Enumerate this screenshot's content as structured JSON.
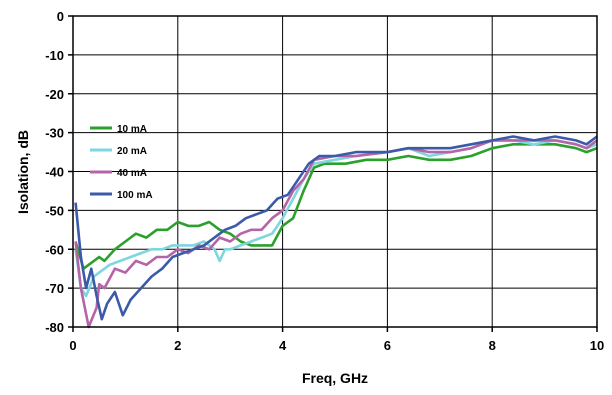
{
  "chart_data": {
    "type": "line",
    "xlabel": "Freq, GHz",
    "ylabel": "Isolation, dB",
    "xlim": [
      0,
      10
    ],
    "ylim": [
      -80,
      0
    ],
    "xticks": [
      0,
      2,
      4,
      6,
      8,
      10
    ],
    "yticks": [
      0,
      -10,
      -20,
      -30,
      -40,
      -50,
      -60,
      -70,
      -80
    ],
    "grid": true,
    "legend_position": "left",
    "series": [
      {
        "name": "10 mA",
        "color": "#2ca02c",
        "points": [
          [
            0.05,
            -58
          ],
          [
            0.2,
            -65
          ],
          [
            0.3,
            -64
          ],
          [
            0.5,
            -62
          ],
          [
            0.6,
            -63
          ],
          [
            0.8,
            -60
          ],
          [
            1.0,
            -58
          ],
          [
            1.2,
            -56
          ],
          [
            1.4,
            -57
          ],
          [
            1.6,
            -55
          ],
          [
            1.8,
            -55
          ],
          [
            2.0,
            -53
          ],
          [
            2.2,
            -54
          ],
          [
            2.4,
            -54
          ],
          [
            2.6,
            -53
          ],
          [
            2.8,
            -55
          ],
          [
            3.0,
            -56
          ],
          [
            3.2,
            -58
          ],
          [
            3.4,
            -59
          ],
          [
            3.6,
            -59
          ],
          [
            3.8,
            -59
          ],
          [
            4.0,
            -54
          ],
          [
            4.2,
            -52
          ],
          [
            4.4,
            -45
          ],
          [
            4.6,
            -39
          ],
          [
            4.8,
            -38
          ],
          [
            5.2,
            -38
          ],
          [
            5.6,
            -37
          ],
          [
            6.0,
            -37
          ],
          [
            6.4,
            -36
          ],
          [
            6.8,
            -37
          ],
          [
            7.2,
            -37
          ],
          [
            7.6,
            -36
          ],
          [
            8.0,
            -34
          ],
          [
            8.4,
            -33
          ],
          [
            8.8,
            -33
          ],
          [
            9.2,
            -33
          ],
          [
            9.6,
            -34
          ],
          [
            9.8,
            -35
          ],
          [
            10.0,
            -34
          ]
        ]
      },
      {
        "name": "20 mA",
        "color": "#7ed6df",
        "points": [
          [
            0.05,
            -60
          ],
          [
            0.15,
            -70
          ],
          [
            0.25,
            -72
          ],
          [
            0.4,
            -67
          ],
          [
            0.5,
            -66
          ],
          [
            0.7,
            -64
          ],
          [
            0.9,
            -63
          ],
          [
            1.1,
            -62
          ],
          [
            1.3,
            -61
          ],
          [
            1.5,
            -60
          ],
          [
            1.7,
            -60
          ],
          [
            1.9,
            -59
          ],
          [
            2.1,
            -59
          ],
          [
            2.3,
            -59
          ],
          [
            2.5,
            -58
          ],
          [
            2.7,
            -60
          ],
          [
            2.8,
            -63
          ],
          [
            2.9,
            -60
          ],
          [
            3.0,
            -60
          ],
          [
            3.2,
            -59
          ],
          [
            3.4,
            -58
          ],
          [
            3.6,
            -57
          ],
          [
            3.8,
            -56
          ],
          [
            4.0,
            -52
          ],
          [
            4.2,
            -47
          ],
          [
            4.4,
            -42
          ],
          [
            4.6,
            -38
          ],
          [
            5.0,
            -37
          ],
          [
            5.4,
            -36
          ],
          [
            6.0,
            -35
          ],
          [
            6.4,
            -34
          ],
          [
            6.8,
            -36
          ],
          [
            7.2,
            -35
          ],
          [
            7.6,
            -34
          ],
          [
            8.0,
            -32
          ],
          [
            8.4,
            -32
          ],
          [
            8.8,
            -33
          ],
          [
            9.2,
            -32
          ],
          [
            9.6,
            -33
          ],
          [
            9.8,
            -34
          ],
          [
            10.0,
            -33
          ]
        ]
      },
      {
        "name": "40 mA",
        "color": "#b565a7",
        "points": [
          [
            0.05,
            -58
          ],
          [
            0.15,
            -70
          ],
          [
            0.3,
            -80
          ],
          [
            0.45,
            -75
          ],
          [
            0.5,
            -69
          ],
          [
            0.6,
            -70
          ],
          [
            0.8,
            -65
          ],
          [
            1.0,
            -66
          ],
          [
            1.2,
            -63
          ],
          [
            1.4,
            -64
          ],
          [
            1.6,
            -62
          ],
          [
            1.8,
            -62
          ],
          [
            2.0,
            -60
          ],
          [
            2.2,
            -61
          ],
          [
            2.4,
            -59
          ],
          [
            2.6,
            -60
          ],
          [
            2.8,
            -57
          ],
          [
            3.0,
            -58
          ],
          [
            3.2,
            -56
          ],
          [
            3.4,
            -55
          ],
          [
            3.6,
            -55
          ],
          [
            3.8,
            -52
          ],
          [
            4.0,
            -50
          ],
          [
            4.2,
            -45
          ],
          [
            4.4,
            -42
          ],
          [
            4.6,
            -37
          ],
          [
            5.0,
            -36
          ],
          [
            5.4,
            -36
          ],
          [
            6.0,
            -35
          ],
          [
            6.4,
            -34
          ],
          [
            6.8,
            -35
          ],
          [
            7.2,
            -35
          ],
          [
            7.6,
            -34
          ],
          [
            8.0,
            -32
          ],
          [
            8.4,
            -32
          ],
          [
            8.8,
            -32
          ],
          [
            9.2,
            -32
          ],
          [
            9.6,
            -33
          ],
          [
            9.8,
            -34
          ],
          [
            10.0,
            -32
          ]
        ]
      },
      {
        "name": "100 mA",
        "color": "#3b5aa8",
        "points": [
          [
            0.05,
            -48
          ],
          [
            0.15,
            -62
          ],
          [
            0.25,
            -70
          ],
          [
            0.35,
            -65
          ],
          [
            0.45,
            -72
          ],
          [
            0.55,
            -78
          ],
          [
            0.65,
            -74
          ],
          [
            0.8,
            -71
          ],
          [
            0.95,
            -77
          ],
          [
            1.1,
            -73
          ],
          [
            1.3,
            -70
          ],
          [
            1.5,
            -67
          ],
          [
            1.7,
            -65
          ],
          [
            1.9,
            -62
          ],
          [
            2.1,
            -61
          ],
          [
            2.3,
            -60
          ],
          [
            2.5,
            -59
          ],
          [
            2.7,
            -57
          ],
          [
            2.9,
            -55
          ],
          [
            3.1,
            -54
          ],
          [
            3.3,
            -52
          ],
          [
            3.5,
            -51
          ],
          [
            3.7,
            -50
          ],
          [
            3.9,
            -47
          ],
          [
            4.1,
            -46
          ],
          [
            4.3,
            -42
          ],
          [
            4.5,
            -38
          ],
          [
            4.7,
            -36
          ],
          [
            5.0,
            -36
          ],
          [
            5.4,
            -35
          ],
          [
            6.0,
            -35
          ],
          [
            6.4,
            -34
          ],
          [
            6.8,
            -34
          ],
          [
            7.2,
            -34
          ],
          [
            7.6,
            -33
          ],
          [
            8.0,
            -32
          ],
          [
            8.4,
            -31
          ],
          [
            8.8,
            -32
          ],
          [
            9.2,
            -31
          ],
          [
            9.6,
            -32
          ],
          [
            9.8,
            -33
          ],
          [
            10.0,
            -31
          ]
        ]
      }
    ]
  }
}
